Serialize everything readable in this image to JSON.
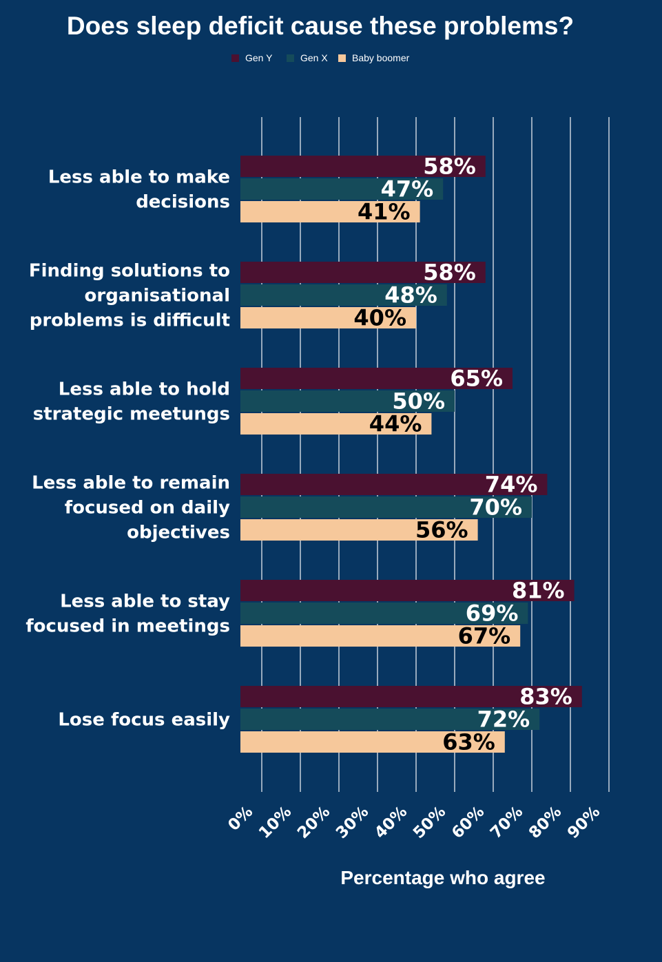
{
  "chart_data": {
    "type": "bar",
    "orientation": "horizontal",
    "title": "Does sleep deficit cause these problems?",
    "xlabel": "Percentage who agree",
    "ylabel": "",
    "xlim": [
      0,
      90
    ],
    "x_ticks": [
      "0%",
      "10%",
      "20%",
      "30%",
      "40%",
      "50%",
      "60%",
      "70%",
      "80%",
      "90%"
    ],
    "grid": true,
    "legend_position": "top-center",
    "categories": [
      [
        "Less able to make",
        "decisions"
      ],
      [
        "Finding solutions to",
        "organisational",
        "problems is difficult"
      ],
      [
        "Less able to hold",
        "strategic meetungs"
      ],
      [
        "Less able to remain",
        "focused on daily",
        "objectives"
      ],
      [
        "Less able to stay",
        "focused in meetings"
      ],
      [
        "Lose focus easily"
      ]
    ],
    "series": [
      {
        "name": "Gen Y",
        "color": "#4a1130",
        "label_color": "#ffffff",
        "values": [
          58,
          58,
          65,
          74,
          81,
          83
        ],
        "labels": [
          "58%",
          "58%",
          "65%",
          "74%",
          "81%",
          "83%"
        ]
      },
      {
        "name": "Gen X",
        "color": "#154b5a",
        "label_color": "#ffffff",
        "values": [
          47,
          48,
          50,
          70,
          69,
          72
        ],
        "labels": [
          "47%",
          "48%",
          "50%",
          "70%",
          "69%",
          "72%"
        ]
      },
      {
        "name": "Baby boomer",
        "color": "#f6c89b",
        "label_color": "#000000",
        "values": [
          41,
          40,
          44,
          56,
          67,
          63
        ],
        "labels": [
          "41%",
          "40%",
          "44%",
          "56%",
          "67%",
          "63%"
        ]
      }
    ]
  }
}
